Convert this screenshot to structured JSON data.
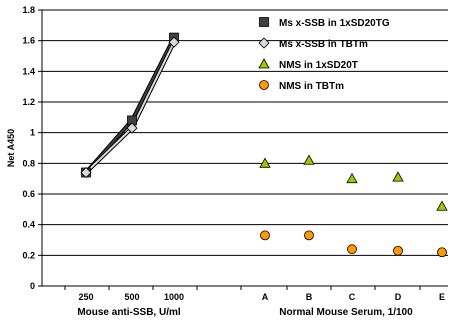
{
  "chart_data": {
    "type": "scatter",
    "ylabel": "Net A450",
    "ylim": [
      0,
      1.8
    ],
    "yticks": [
      "0",
      "0.2",
      "0.4",
      "0.6",
      "0.8",
      "1",
      "1.2",
      "1.4",
      "1.6",
      "1.8"
    ],
    "grid": "horizontal",
    "legend_position": "top-right",
    "groups": [
      {
        "xlabel": "Mouse anti-SSB, U/ml",
        "categories": [
          "250",
          "500",
          "1000"
        ]
      },
      {
        "xlabel": "Normal Mouse Serum, 1/100",
        "categories": [
          "A",
          "B",
          "C",
          "D",
          "E"
        ]
      }
    ],
    "series": [
      {
        "name": "Ms x-SSB in 1xSD20TG",
        "group": 0,
        "marker": "square",
        "color": "#404040",
        "connected": true,
        "values": [
          0.74,
          1.08,
          1.62
        ]
      },
      {
        "name": "Ms x-SSB in TBTm",
        "group": 0,
        "marker": "diamond",
        "color": "#d9d9d9",
        "connected": true,
        "values": [
          0.74,
          1.03,
          1.59
        ]
      },
      {
        "name": "NMS in 1xSD20T",
        "group": 1,
        "marker": "triangle",
        "color": "#99cc00",
        "connected": false,
        "values": [
          0.8,
          0.82,
          0.7,
          0.71,
          0.52
        ]
      },
      {
        "name": "NMS in TBTm",
        "group": 1,
        "marker": "circle",
        "color": "#ff9900",
        "connected": false,
        "values": [
          0.33,
          0.33,
          0.24,
          0.23,
          0.22
        ]
      }
    ]
  }
}
